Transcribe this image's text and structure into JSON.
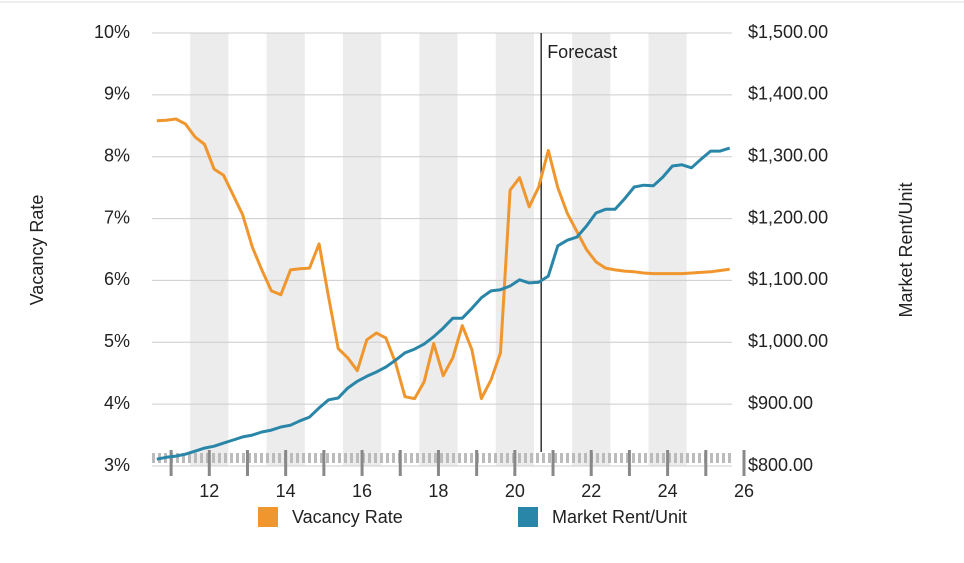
{
  "chart_data": {
    "type": "line",
    "y_label": "Vacancy Rate",
    "y2_label": "Market Rent/Unit",
    "annotation": {
      "text": "Forecast",
      "x": 20.69
    },
    "x": [
      10.625,
      10.875,
      11.125,
      11.375,
      11.625,
      11.875,
      12.125,
      12.375,
      12.625,
      12.875,
      13.125,
      13.375,
      13.625,
      13.875,
      14.125,
      14.375,
      14.625,
      14.875,
      15.125,
      15.375,
      15.625,
      15.875,
      16.125,
      16.375,
      16.625,
      16.875,
      17.125,
      17.375,
      17.625,
      17.875,
      18.125,
      18.375,
      18.625,
      18.875,
      19.125,
      19.375,
      19.625,
      19.875,
      20.125,
      20.375,
      20.625,
      20.875,
      21.125,
      21.375,
      21.625,
      21.875,
      22.125,
      22.375,
      22.625,
      22.875,
      23.125,
      23.375,
      23.625,
      23.875,
      24.125,
      24.375,
      24.625,
      24.875,
      25.125,
      25.375,
      25.625
    ],
    "series": [
      {
        "name": "Vacancy Rate",
        "color": "#f0962e",
        "axis": "y",
        "values": [
          8.58,
          8.59,
          8.61,
          8.53,
          8.32,
          8.2,
          7.8,
          7.7,
          7.38,
          7.06,
          6.54,
          6.17,
          5.83,
          5.77,
          6.17,
          6.19,
          6.2,
          6.59,
          5.73,
          4.9,
          4.75,
          4.54,
          5.04,
          5.15,
          5.07,
          4.67,
          4.12,
          4.09,
          4.36,
          4.98,
          4.46,
          4.75,
          5.27,
          4.88,
          4.09,
          4.39,
          4.83,
          7.46,
          7.66,
          7.19,
          7.51,
          8.1,
          7.5,
          7.08,
          6.79,
          6.5,
          6.3,
          6.2,
          6.17,
          6.15,
          6.14,
          6.12,
          6.11,
          6.11,
          6.11,
          6.11,
          6.12,
          6.13,
          6.14,
          6.16,
          6.18
        ]
      },
      {
        "name": "Market Rent/Unit",
        "color": "#2a86a8",
        "axis": "y2",
        "values": [
          811,
          814,
          816,
          819,
          824,
          829,
          832,
          837,
          842,
          847,
          850,
          855,
          858,
          863,
          866,
          873,
          879,
          894,
          907,
          910,
          926,
          937,
          945,
          952,
          960,
          971,
          983,
          989,
          997,
          1009,
          1023,
          1039,
          1039,
          1055,
          1072,
          1083,
          1085,
          1091,
          1101,
          1096,
          1097,
          1107,
          1156,
          1165,
          1170,
          1188,
          1209,
          1215,
          1215,
          1232,
          1251,
          1254,
          1253,
          1267,
          1285,
          1287,
          1282,
          1296,
          1309,
          1309,
          1314
        ]
      }
    ],
    "xlim": [
      10.5,
      26
    ],
    "xticks": [
      12,
      14,
      16,
      18,
      20,
      22,
      24,
      26
    ],
    "ylim": [
      3,
      10
    ],
    "yticks": [
      {
        "value": 3,
        "label": "3%"
      },
      {
        "value": 4,
        "label": "4%"
      },
      {
        "value": 5,
        "label": "5%"
      },
      {
        "value": 6,
        "label": "6%"
      },
      {
        "value": 7,
        "label": "7%"
      },
      {
        "value": 8,
        "label": "8%"
      },
      {
        "value": 9,
        "label": "9%"
      },
      {
        "value": 10,
        "label": "10%"
      }
    ],
    "y2lim": [
      800,
      1500
    ],
    "y2ticks": [
      {
        "value": 800,
        "label": "$800.00"
      },
      {
        "value": 900,
        "label": "$900.00"
      },
      {
        "value": 1000,
        "label": "$1,000.00"
      },
      {
        "value": 1100,
        "label": "$1,100.00"
      },
      {
        "value": 1200,
        "label": "$1,200.00"
      },
      {
        "value": 1300,
        "label": "$1,300.00"
      },
      {
        "value": 1400,
        "label": "$1,400.00"
      },
      {
        "value": 1500,
        "label": "$1,500.00"
      }
    ],
    "grid": true
  }
}
